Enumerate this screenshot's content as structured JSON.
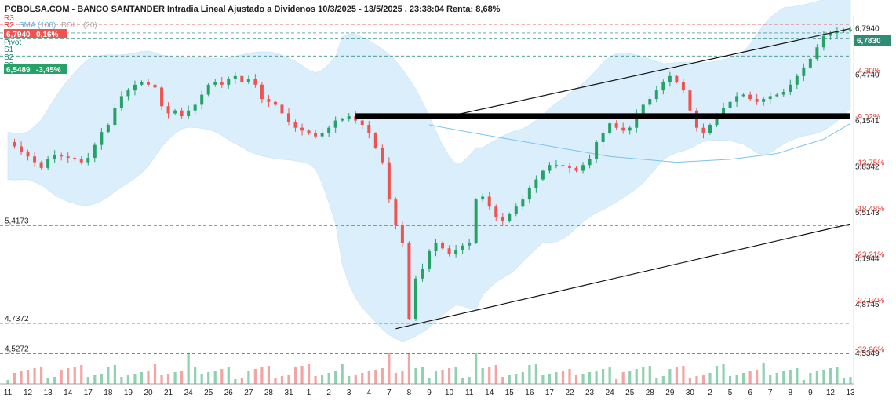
{
  "chart_data": {
    "type": "candlestick",
    "title": "PCBOLSA.COM - BANCO SANTANDER Intradia Lineal Ajustado a Dividenos 10/3/2025 - 13/5/2025 , 23:38:04 Renta: 8,68%",
    "legend": {
      "position": "top-left",
      "r3": "R3",
      "r2": "R2",
      "sma": "SMA (100)",
      "boll": "BOLL (20)",
      "pivot": "Pivot",
      "s1": "S1",
      "s2": "S2",
      "s3": "S3"
    },
    "price_tags": {
      "high_value": "6,7940",
      "high_change": "0,16%",
      "low_value": "6,5489",
      "low_change": "-3,45%",
      "last_value": "6,7830"
    },
    "colors": {
      "up": "#26a269",
      "down": "#ef5350",
      "band_fill": "#dbeefb",
      "sma": "#7cc3e8",
      "resistance": "#e53935",
      "support": "#1e7f6e"
    },
    "ylim": [
      4.42,
      6.88
    ],
    "grid": false,
    "y_ticks": [
      {
        "label": "6,7940",
        "value": 6.794
      },
      {
        "label": "6,4740",
        "value": 6.474
      },
      {
        "label": "6,1541",
        "value": 6.1541
      },
      {
        "label": "5,8342",
        "value": 5.8342
      },
      {
        "label": "5,5143",
        "value": 5.5143
      },
      {
        "label": "5,1944",
        "value": 5.1944
      },
      {
        "label": "4,8745",
        "value": 4.8745
      },
      {
        "label": "4,5349",
        "value": 4.5349
      }
    ],
    "y_pct": [
      {
        "label": "-4,30%",
        "value": 6.5
      },
      {
        "label": "-9,02%",
        "value": 6.18
      },
      {
        "label": "-13,75%",
        "value": 5.86
      },
      {
        "label": "-18,48%",
        "value": 5.54
      },
      {
        "label": "-23,21%",
        "value": 5.22
      },
      {
        "label": "-27,94%",
        "value": 4.9
      },
      {
        "label": "-32,96%",
        "value": 4.56
      }
    ],
    "levels_left": [
      {
        "label": "5,4173",
        "value": 5.4173
      },
      {
        "label": "4,7372",
        "value": 4.7372
      },
      {
        "label": "4,5272",
        "value": 4.5272
      }
    ],
    "pivot_levels": {
      "r3": 6.85,
      "r2": 6.82,
      "r1": 6.8,
      "pivot": 6.76,
      "s1": 6.72,
      "s2": 6.67,
      "s3": 6.6
    },
    "x_labels": [
      "11",
      "12",
      "13",
      "14",
      "17",
      "18",
      "19",
      "20",
      "21",
      "24",
      "25",
      "26",
      "27",
      "28",
      "31",
      "1",
      "2",
      "3",
      "4",
      "7",
      "8",
      "9",
      "10",
      "11",
      "14",
      "15",
      "16",
      "17",
      "22",
      "23",
      "24",
      "25",
      "28",
      "29",
      "30",
      "2",
      "5",
      "6",
      "7",
      "8",
      "9",
      "12",
      "13"
    ],
    "x_positions": [
      0,
      3,
      6,
      9,
      12,
      15,
      18,
      21,
      24,
      27,
      30,
      33,
      36,
      39,
      42,
      45,
      48,
      51,
      54,
      57,
      60,
      63,
      66,
      69,
      72,
      75,
      78,
      81,
      84,
      87,
      90,
      93,
      96,
      99,
      102,
      105,
      108,
      111,
      114,
      117,
      120,
      123,
      126
    ],
    "close_path": [
      {
        "x": 0,
        "y": 6.0
      },
      {
        "x": 1,
        "y": 5.97
      },
      {
        "x": 2,
        "y": 5.93
      },
      {
        "x": 3,
        "y": 5.9
      },
      {
        "x": 4,
        "y": 5.86
      },
      {
        "x": 5,
        "y": 5.82
      },
      {
        "x": 6,
        "y": 5.88
      },
      {
        "x": 7,
        "y": 5.91
      },
      {
        "x": 8,
        "y": 5.9
      },
      {
        "x": 9,
        "y": 5.89
      },
      {
        "x": 10,
        "y": 5.88
      },
      {
        "x": 11,
        "y": 5.86
      },
      {
        "x": 12,
        "y": 5.89
      },
      {
        "x": 13,
        "y": 5.98
      },
      {
        "x": 14,
        "y": 6.07
      },
      {
        "x": 15,
        "y": 6.12
      },
      {
        "x": 16,
        "y": 6.24
      },
      {
        "x": 17,
        "y": 6.32
      },
      {
        "x": 18,
        "y": 6.36
      },
      {
        "x": 19,
        "y": 6.4
      },
      {
        "x": 20,
        "y": 6.42
      },
      {
        "x": 21,
        "y": 6.4
      },
      {
        "x": 22,
        "y": 6.38
      },
      {
        "x": 23,
        "y": 6.25
      },
      {
        "x": 24,
        "y": 6.2
      },
      {
        "x": 25,
        "y": 6.22
      },
      {
        "x": 26,
        "y": 6.18
      },
      {
        "x": 27,
        "y": 6.22
      },
      {
        "x": 28,
        "y": 6.26
      },
      {
        "x": 29,
        "y": 6.33
      },
      {
        "x": 30,
        "y": 6.4
      },
      {
        "x": 31,
        "y": 6.42
      },
      {
        "x": 32,
        "y": 6.4
      },
      {
        "x": 33,
        "y": 6.44
      },
      {
        "x": 34,
        "y": 6.46
      },
      {
        "x": 35,
        "y": 6.42
      },
      {
        "x": 36,
        "y": 6.44
      },
      {
        "x": 37,
        "y": 6.4
      },
      {
        "x": 38,
        "y": 6.3
      },
      {
        "x": 39,
        "y": 6.28
      },
      {
        "x": 40,
        "y": 6.26
      },
      {
        "x": 41,
        "y": 6.2
      },
      {
        "x": 42,
        "y": 6.14
      },
      {
        "x": 43,
        "y": 6.1
      },
      {
        "x": 44,
        "y": 6.08
      },
      {
        "x": 45,
        "y": 6.06
      },
      {
        "x": 46,
        "y": 6.04
      },
      {
        "x": 47,
        "y": 6.06
      },
      {
        "x": 48,
        "y": 6.1
      },
      {
        "x": 49,
        "y": 6.15
      },
      {
        "x": 50,
        "y": 6.16
      },
      {
        "x": 51,
        "y": 6.18
      },
      {
        "x": 52,
        "y": 6.15
      },
      {
        "x": 53,
        "y": 6.12
      },
      {
        "x": 54,
        "y": 6.06
      },
      {
        "x": 55,
        "y": 5.96
      },
      {
        "x": 56,
        "y": 5.86
      },
      {
        "x": 57,
        "y": 5.6
      },
      {
        "x": 58,
        "y": 5.42
      },
      {
        "x": 59,
        "y": 5.3
      },
      {
        "x": 60,
        "y": 4.77
      },
      {
        "x": 61,
        "y": 5.05
      },
      {
        "x": 62,
        "y": 5.12
      },
      {
        "x": 63,
        "y": 5.24
      },
      {
        "x": 64,
        "y": 5.3
      },
      {
        "x": 65,
        "y": 5.26
      },
      {
        "x": 66,
        "y": 5.22
      },
      {
        "x": 67,
        "y": 5.25
      },
      {
        "x": 68,
        "y": 5.28
      },
      {
        "x": 69,
        "y": 5.3
      },
      {
        "x": 70,
        "y": 5.6
      },
      {
        "x": 71,
        "y": 5.62
      },
      {
        "x": 72,
        "y": 5.55
      },
      {
        "x": 73,
        "y": 5.48
      },
      {
        "x": 74,
        "y": 5.45
      },
      {
        "x": 75,
        "y": 5.5
      },
      {
        "x": 76,
        "y": 5.55
      },
      {
        "x": 77,
        "y": 5.6
      },
      {
        "x": 78,
        "y": 5.68
      },
      {
        "x": 79,
        "y": 5.74
      },
      {
        "x": 80,
        "y": 5.8
      },
      {
        "x": 81,
        "y": 5.84
      },
      {
        "x": 82,
        "y": 5.84
      },
      {
        "x": 83,
        "y": 5.83
      },
      {
        "x": 84,
        "y": 5.82
      },
      {
        "x": 85,
        "y": 5.8
      },
      {
        "x": 86,
        "y": 5.84
      },
      {
        "x": 87,
        "y": 5.88
      },
      {
        "x": 88,
        "y": 6.0
      },
      {
        "x": 89,
        "y": 6.06
      },
      {
        "x": 90,
        "y": 6.13
      },
      {
        "x": 91,
        "y": 6.1
      },
      {
        "x": 92,
        "y": 6.08
      },
      {
        "x": 93,
        "y": 6.1
      },
      {
        "x": 94,
        "y": 6.2
      },
      {
        "x": 95,
        "y": 6.26
      },
      {
        "x": 96,
        "y": 6.3
      },
      {
        "x": 97,
        "y": 6.36
      },
      {
        "x": 98,
        "y": 6.42
      },
      {
        "x": 99,
        "y": 6.46
      },
      {
        "x": 100,
        "y": 6.42
      },
      {
        "x": 101,
        "y": 6.36
      },
      {
        "x": 102,
        "y": 6.22
      },
      {
        "x": 103,
        "y": 6.1
      },
      {
        "x": 104,
        "y": 6.06
      },
      {
        "x": 105,
        "y": 6.12
      },
      {
        "x": 106,
        "y": 6.18
      },
      {
        "x": 107,
        "y": 6.24
      },
      {
        "x": 108,
        "y": 6.28
      },
      {
        "x": 109,
        "y": 6.32
      },
      {
        "x": 110,
        "y": 6.33
      },
      {
        "x": 111,
        "y": 6.3
      },
      {
        "x": 112,
        "y": 6.28
      },
      {
        "x": 113,
        "y": 6.3
      },
      {
        "x": 114,
        "y": 6.32
      },
      {
        "x": 115,
        "y": 6.33
      },
      {
        "x": 116,
        "y": 6.35
      },
      {
        "x": 117,
        "y": 6.4
      },
      {
        "x": 118,
        "y": 6.46
      },
      {
        "x": 119,
        "y": 6.52
      },
      {
        "x": 120,
        "y": 6.58
      },
      {
        "x": 121,
        "y": 6.66
      },
      {
        "x": 122,
        "y": 6.74
      },
      {
        "x": 123,
        "y": 6.76
      },
      {
        "x": 124,
        "y": 6.77
      },
      {
        "x": 125,
        "y": 6.78
      },
      {
        "x": 126,
        "y": 6.783
      }
    ],
    "sma_line": [
      {
        "x": 63,
        "y": 6.12
      },
      {
        "x": 70,
        "y": 6.06
      },
      {
        "x": 80,
        "y": 5.98
      },
      {
        "x": 90,
        "y": 5.9
      },
      {
        "x": 100,
        "y": 5.86
      },
      {
        "x": 108,
        "y": 5.88
      },
      {
        "x": 115,
        "y": 5.92
      },
      {
        "x": 122,
        "y": 6.02
      },
      {
        "x": 126,
        "y": 6.13
      }
    ],
    "trend_lines": [
      {
        "x1": 67,
        "y1": 6.19,
        "x2": 126,
        "y2": 6.79
      },
      {
        "x1": 58,
        "y1": 4.7,
        "x2": 126,
        "y2": 5.43
      }
    ],
    "horizontal_zone": {
      "x1": 52,
      "x2": 126,
      "y1": 6.16,
      "y2": 6.2
    }
  }
}
